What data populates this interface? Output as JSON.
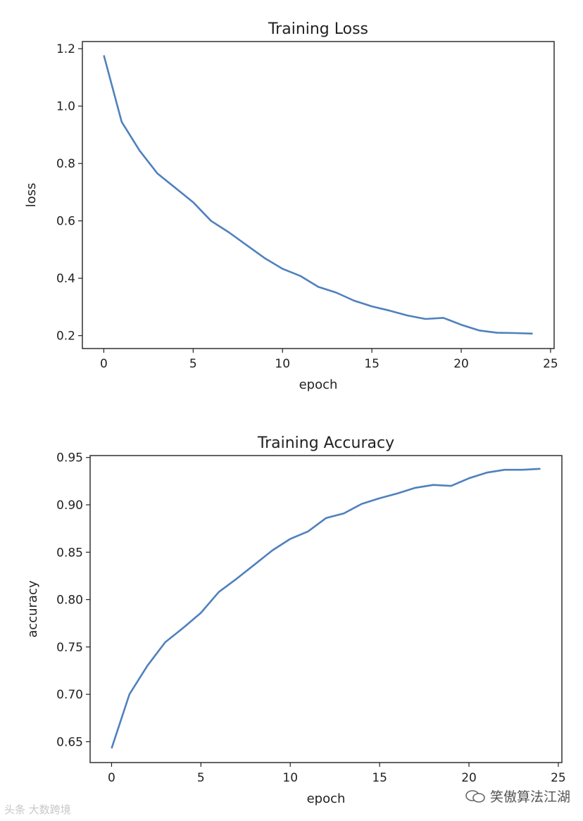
{
  "chart_data": [
    {
      "type": "line",
      "title": "Training Loss",
      "xlabel": "epoch",
      "ylabel": "loss",
      "xlim": [
        -1.2,
        25.2
      ],
      "ylim": [
        0.155,
        1.225
      ],
      "xticks": [
        0,
        5,
        10,
        15,
        20,
        25
      ],
      "yticks": [
        0.2,
        0.4,
        0.6,
        0.8,
        1.0,
        1.2
      ],
      "ytick_labels": [
        "0.2",
        "0.4",
        "0.6",
        "0.8",
        "1.0",
        "1.2"
      ],
      "color": "#4f81bd",
      "x": [
        0,
        1,
        2,
        3,
        4,
        5,
        6,
        7,
        8,
        9,
        10,
        11,
        12,
        13,
        14,
        15,
        16,
        17,
        18,
        19,
        20,
        21,
        22,
        23,
        24
      ],
      "y": [
        1.177,
        0.945,
        0.845,
        0.765,
        0.715,
        0.665,
        0.6,
        0.56,
        0.515,
        0.47,
        0.433,
        0.408,
        0.37,
        0.35,
        0.322,
        0.302,
        0.287,
        0.27,
        0.258,
        0.262,
        0.238,
        0.218,
        0.21,
        0.209,
        0.207
      ]
    },
    {
      "type": "line",
      "title": "Training Accuracy",
      "xlabel": "epoch",
      "ylabel": "accuracy",
      "xlim": [
        -1.2,
        25.2
      ],
      "ylim": [
        0.628,
        0.952
      ],
      "xticks": [
        0,
        5,
        10,
        15,
        20,
        25
      ],
      "yticks": [
        0.65,
        0.7,
        0.75,
        0.8,
        0.85,
        0.9,
        0.95
      ],
      "ytick_labels": [
        "0.65",
        "0.70",
        "0.75",
        "0.80",
        "0.85",
        "0.90",
        "0.95"
      ],
      "color": "#4f81bd",
      "x": [
        0,
        1,
        2,
        3,
        4,
        5,
        6,
        7,
        8,
        9,
        10,
        11,
        12,
        13,
        14,
        15,
        16,
        17,
        18,
        19,
        20,
        21,
        22,
        23,
        24
      ],
      "y": [
        0.643,
        0.7,
        0.73,
        0.755,
        0.77,
        0.786,
        0.808,
        0.822,
        0.837,
        0.852,
        0.864,
        0.872,
        0.886,
        0.891,
        0.901,
        0.907,
        0.912,
        0.918,
        0.921,
        0.92,
        0.928,
        0.934,
        0.937,
        0.937,
        0.938
      ]
    }
  ],
  "watermarks": {
    "left": "头条 大数跨境",
    "right": "笑傲算法江湖"
  }
}
